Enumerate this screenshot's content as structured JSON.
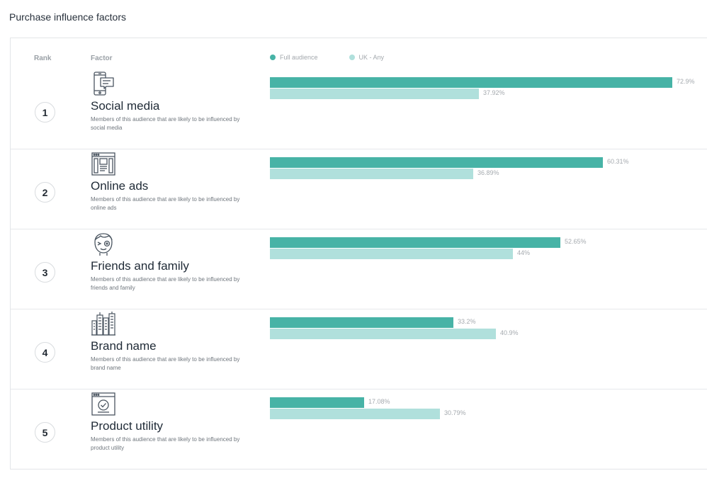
{
  "page": {
    "title": "Purchase influence factors"
  },
  "table": {
    "rank_header": "Rank",
    "factor_header": "Factor"
  },
  "legend": [
    {
      "label": "Full audience",
      "color": "#47b3a6"
    },
    {
      "label": "UK - Any",
      "color": "#b0e0dc"
    }
  ],
  "rows": [
    {
      "rank": "1",
      "name": "Social media",
      "icon": "smartphone-chat-icon",
      "description": "Members of this audience that are likely to be influenced by social media",
      "full_label": "72.9%",
      "uk_label": "37.92%"
    },
    {
      "rank": "2",
      "name": "Online ads",
      "icon": "browser-ad-icon",
      "description": "Members of this audience that are likely to be influenced by online ads",
      "full_label": "60.31%",
      "uk_label": "36.89%"
    },
    {
      "rank": "3",
      "name": "Friends and family",
      "icon": "friend-face-icon",
      "description": "Members of this audience that are likely to be influenced by friends and family",
      "full_label": "52.65%",
      "uk_label": "44%"
    },
    {
      "rank": "4",
      "name": "Brand name",
      "icon": "city-buildings-icon",
      "description": "Members of this audience that are likely to be influenced by brand name",
      "full_label": "33.2%",
      "uk_label": "40.9%"
    },
    {
      "rank": "5",
      "name": "Product utility",
      "icon": "browser-check-icon",
      "description": "Members of this audience that are likely to be influenced by product utility",
      "full_label": "17.08%",
      "uk_label": "30.79%"
    }
  ],
  "chart_data": {
    "type": "bar",
    "orientation": "horizontal",
    "categories": [
      "Social media",
      "Online ads",
      "Friends and family",
      "Brand name",
      "Product utility"
    ],
    "series": [
      {
        "name": "Full audience",
        "values": [
          72.9,
          60.31,
          52.65,
          33.2,
          17.08
        ],
        "color": "#47b3a6"
      },
      {
        "name": "UK - Any",
        "values": [
          37.92,
          36.89,
          44,
          40.9,
          30.79
        ],
        "color": "#b0e0dc"
      }
    ],
    "xlim": [
      0,
      72.9
    ],
    "legend_position": "top",
    "grid": false
  }
}
